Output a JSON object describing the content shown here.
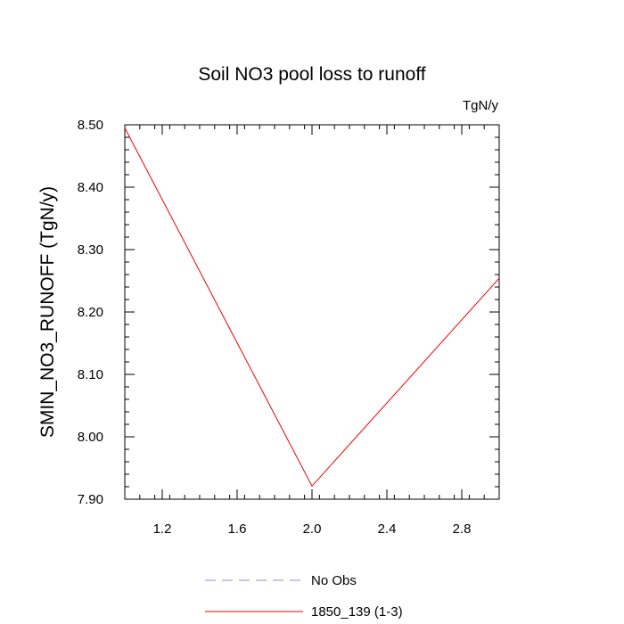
{
  "chart_data": {
    "type": "line",
    "title": "Soil NO3 pool loss to runoff",
    "units_label": "TgN/y",
    "ylabel": "SMIN_NO3_RUNOFF  (TgN/y)",
    "xlabel": "",
    "xlim": [
      1.0,
      3.0
    ],
    "ylim": [
      7.9,
      8.5
    ],
    "x_ticks": [
      {
        "value": 1.2,
        "label": "1.2"
      },
      {
        "value": 1.6,
        "label": "1.6"
      },
      {
        "value": 2.0,
        "label": "2.0"
      },
      {
        "value": 2.4,
        "label": "2.4"
      },
      {
        "value": 2.8,
        "label": "2.8"
      }
    ],
    "y_ticks": [
      {
        "value": 7.9,
        "label": "7.90"
      },
      {
        "value": 8.0,
        "label": "8.00"
      },
      {
        "value": 8.1,
        "label": "8.10"
      },
      {
        "value": 8.2,
        "label": "8.20"
      },
      {
        "value": 8.3,
        "label": "8.30"
      },
      {
        "value": 8.4,
        "label": "8.40"
      },
      {
        "value": 8.5,
        "label": "8.50"
      }
    ],
    "grid": false,
    "legend_position": "bottom",
    "series": [
      {
        "name": "No Obs",
        "color": "#8888ee",
        "dash": "dashed",
        "x": [],
        "y": []
      },
      {
        "name": "1850_139 (1-3)",
        "color": "#ee0000",
        "dash": "solid",
        "x": [
          1.0,
          2.0,
          3.0
        ],
        "y": [
          8.495,
          7.921,
          8.254
        ]
      }
    ]
  }
}
